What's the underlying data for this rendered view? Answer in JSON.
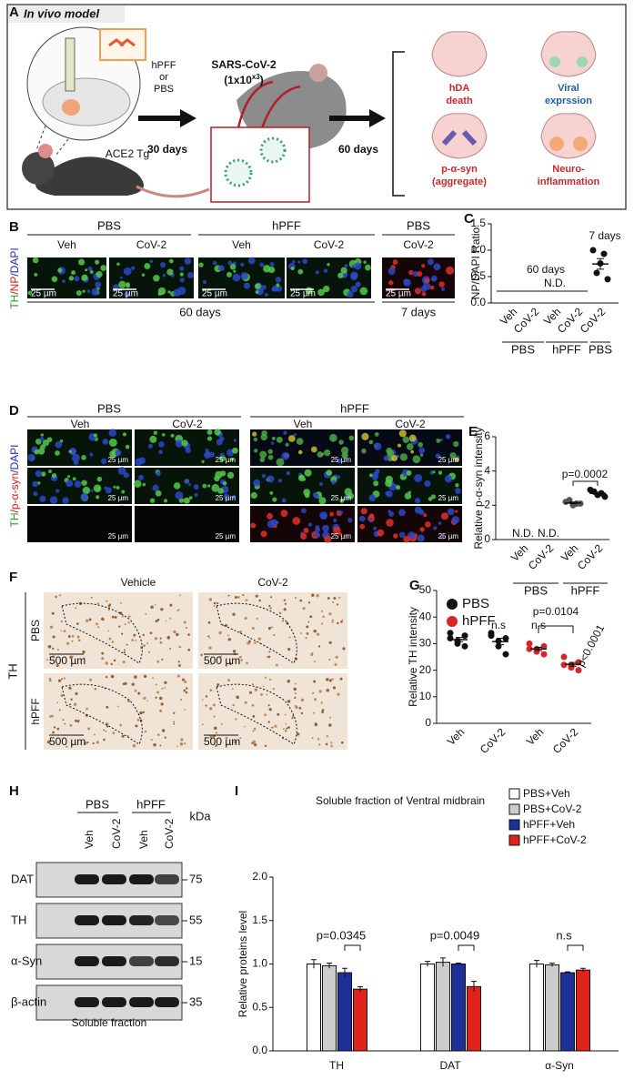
{
  "panel_a": {
    "label": "A",
    "title": "In vivo model",
    "inoculum": [
      "hPFF",
      "or",
      "PBS"
    ],
    "mouse": "ACE2 Tg",
    "virus": "SARS-CoV-2",
    "dose": [
      "(1x10",
      "x3",
      ")"
    ],
    "interval_1": "30 days",
    "interval_2": "60 days",
    "outcomes": [
      [
        "hDA",
        "death"
      ],
      [
        "Viral",
        "exprssion"
      ],
      [
        "p-α-syn",
        "(aggregate)"
      ],
      [
        "Neuro-",
        "inflammation"
      ]
    ]
  },
  "panel_b": {
    "label": "B",
    "groups": [
      "PBS",
      "hPFF",
      "PBS"
    ],
    "conditions": [
      "Veh",
      "CoV-2",
      "Veh",
      "CoV-2",
      "CoV-2"
    ],
    "stain": [
      "TH",
      "/NP",
      "/DAPI"
    ],
    "scale_bars": [
      "25 µm",
      "25 µm",
      "25 µm",
      "25 µm",
      "25 µm"
    ],
    "timepoints": [
      "60 days",
      "7 days"
    ]
  },
  "panel_d": {
    "label": "D",
    "groups": [
      "PBS",
      "hPFF"
    ],
    "conditions": [
      "Veh",
      "CoV-2",
      "Veh",
      "CoV-2"
    ],
    "stain": [
      "TH",
      "/p-α-syn",
      "/DAPI"
    ],
    "scale_bars": [
      "25 µm",
      "25 µm",
      "25 µm",
      "25 µm",
      "25 µm",
      "25 µm",
      "25 µm",
      "25 µm",
      "25 µm",
      "25 µm",
      "25 µm",
      "25 µm"
    ]
  },
  "panel_f": {
    "label": "F",
    "columns": [
      "Vehicle",
      "CoV-2"
    ],
    "rows": [
      "PBS",
      "hPFF"
    ],
    "stain": "TH",
    "scale_bars": [
      "500 µm",
      "500 µm",
      "500 µm",
      "500 µm"
    ]
  },
  "panel_h": {
    "label": "H",
    "groups": [
      "PBS",
      "hPFF"
    ],
    "conditions": [
      "Veh",
      "CoV-2",
      "Veh",
      "CoV-2"
    ],
    "unit": "kDa",
    "proteins": [
      "DAT",
      "TH",
      "α-Syn",
      "β-actin"
    ],
    "markers": [
      "75",
      "55",
      "15",
      "35"
    ],
    "caption": "Soluble fraction"
  },
  "chart_data": [
    {
      "type": "dotplot",
      "label": "C",
      "y_label": "NP/DAPI Ratio",
      "categories": [
        "Veh",
        "CoV-2",
        "Veh",
        "CoV-2",
        "CoV-2"
      ],
      "groups": [
        "PBS",
        "hPFF",
        "PBS"
      ],
      "ylim": [
        0,
        1.5
      ],
      "yticks": [
        {
          "value": 0,
          "label": "0.0"
        },
        {
          "value": 0.5,
          "label": "0.5"
        },
        {
          "value": 1,
          "label": "1.0"
        },
        {
          "value": 1.5,
          "label": "1.5"
        }
      ],
      "colors": [
        "#111111",
        "#111111",
        "#111111",
        "#111111",
        "#111111"
      ],
      "points": [
        null,
        null,
        null,
        null,
        [
          1.0,
          0.93,
          0.75,
          0.57,
          0.45
        ]
      ],
      "means": [
        null,
        null,
        null,
        null,
        0.74
      ],
      "sem": [
        null,
        null,
        null,
        null,
        0.1
      ],
      "annotations": [
        "60 days",
        "7 days",
        "N.D."
      ]
    },
    {
      "type": "dotplot",
      "label": "E",
      "y_label": "Relative p-α-syn intensity",
      "categories": [
        "Veh",
        "CoV-2",
        "Veh",
        "CoV-2"
      ],
      "groups": [
        "PBS",
        "hPFF"
      ],
      "ylim": [
        0,
        6
      ],
      "yticks": [
        0,
        2,
        4,
        6
      ],
      "colors": [
        "#111111",
        "#111111",
        "#555555",
        "#111111"
      ],
      "points": [
        null,
        null,
        [
          2.2,
          2.1,
          2.0,
          2.3,
          2.1
        ],
        [
          2.9,
          2.7,
          2.6,
          2.8,
          2.5
        ]
      ],
      "means": [
        null,
        null,
        2.14,
        2.7
      ],
      "sem": [
        null,
        null,
        0.05,
        0.07
      ],
      "annotations": [
        "N.D.",
        "N.D.",
        "p=0.0002"
      ]
    },
    {
      "type": "dotplot",
      "label": "G",
      "y_label": "Relative TH intensity",
      "categories": [
        "Veh",
        "CoV-2",
        "Veh",
        "CoV-2"
      ],
      "ylim": [
        0,
        50
      ],
      "yticks": [
        0,
        10,
        20,
        30,
        40,
        50
      ],
      "colors": [
        "#111111",
        "#111111",
        "#d62728",
        "#d62728"
      ],
      "legend": [
        {
          "name": "PBS",
          "color": "#111111"
        },
        {
          "name": "hPFF",
          "color": "#d62728"
        }
      ],
      "points": [
        [
          34,
          33,
          31,
          30,
          29,
          32
        ],
        [
          34,
          32,
          31,
          29,
          26,
          33
        ],
        [
          30,
          29,
          28,
          27,
          26,
          28
        ],
        [
          25,
          23,
          22,
          21,
          20,
          22
        ]
      ],
      "means": [
        31.5,
        30.8,
        28,
        22.2
      ],
      "sem": [
        0.8,
        1.2,
        0.6,
        0.7
      ],
      "annotations": [
        "n.s",
        "n.s",
        "p=0.0104",
        "p<0.0001"
      ]
    },
    {
      "type": "bar",
      "label": "I",
      "title": "Soluble fraction of Ventral midbrain",
      "y_label": "Relative proteins level",
      "categories": [
        "TH",
        "DAT",
        "α-Syn"
      ],
      "ylim": [
        0,
        2
      ],
      "yticks": [
        {
          "value": 0,
          "label": "0.0"
        },
        {
          "value": 0.5,
          "label": "0.5"
        },
        {
          "value": 1,
          "label": "1.0"
        },
        {
          "value": 1.5,
          "label": "1.5"
        },
        {
          "value": 2,
          "label": "2.0"
        }
      ],
      "series": [
        {
          "name": "PBS+Veh",
          "color": "#ffffff",
          "values": [
            1.0,
            1.0,
            1.0
          ],
          "errors": [
            0.05,
            0.03,
            0.04
          ]
        },
        {
          "name": "PBS+CoV-2",
          "color": "#cccccc",
          "values": [
            0.98,
            1.02,
            0.99
          ],
          "errors": [
            0.03,
            0.05,
            0.02
          ]
        },
        {
          "name": "hPFF+Veh",
          "color": "#1f2f9a",
          "values": [
            0.9,
            1.0,
            0.9
          ],
          "errors": [
            0.05,
            0.01,
            0.01
          ]
        },
        {
          "name": "hPFF+CoV-2",
          "color": "#e0221c",
          "values": [
            0.71,
            0.74,
            0.93
          ],
          "errors": [
            0.03,
            0.06,
            0.02
          ]
        }
      ],
      "annotations": [
        "p=0.0345",
        "p=0.0049",
        "n.s"
      ]
    }
  ]
}
